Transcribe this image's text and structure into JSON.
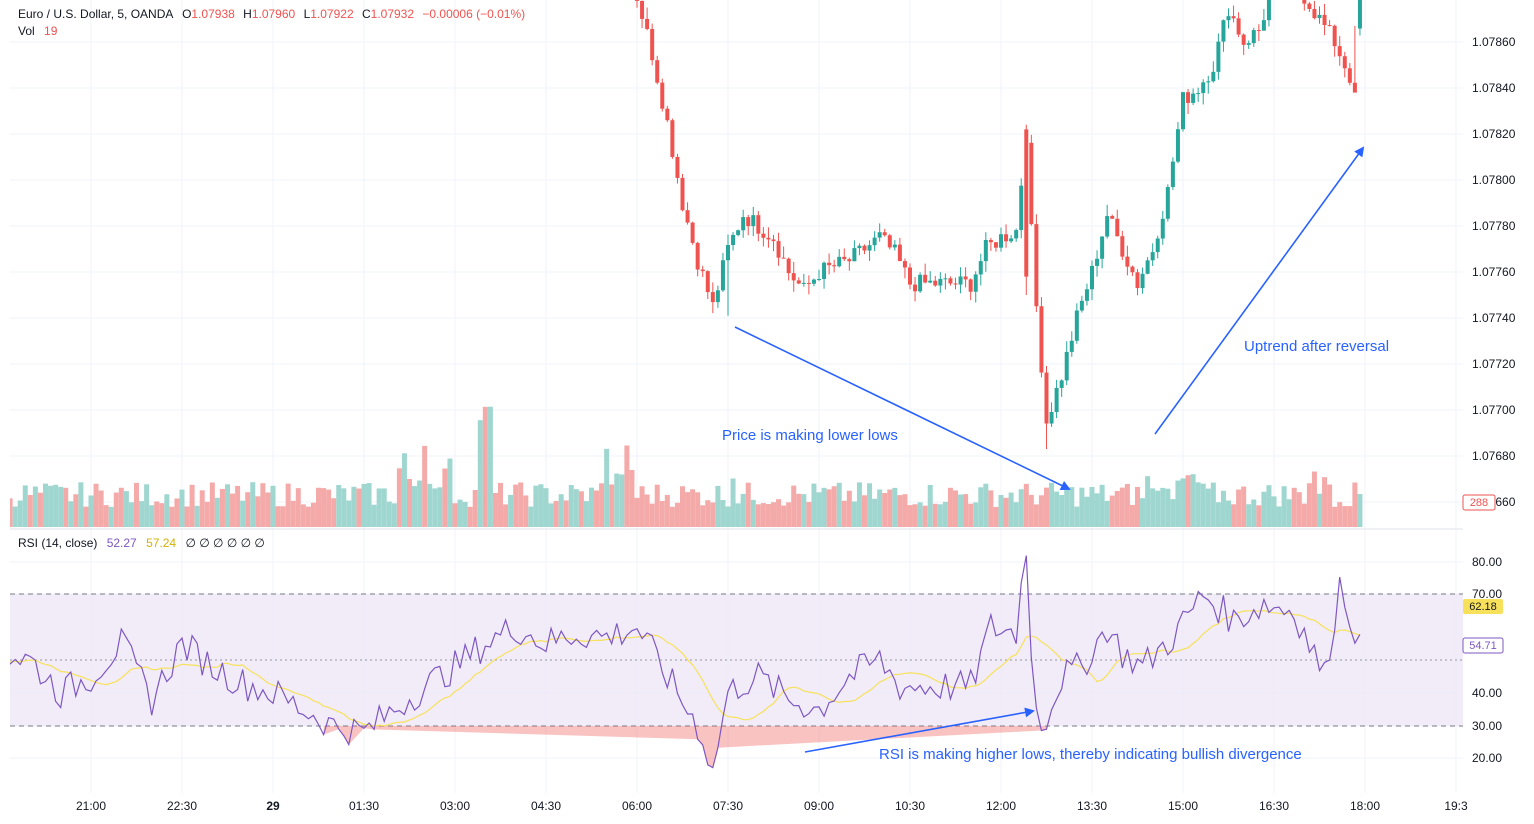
{
  "header": {
    "symbol": "Euro / U.S. Dollar, 5, OANDA",
    "open_label": "O",
    "open": "1.07938",
    "high_label": "H",
    "high": "1.07960",
    "low_label": "L",
    "low": "1.07922",
    "close_label": "C",
    "close": "1.07932",
    "change": "−0.00006 (−0.01%)",
    "vol_label": "Vol",
    "vol_value": "19"
  },
  "rsi_header": {
    "label": "RSI (14, close)",
    "rsi_value": "52.27",
    "ma_value": "57.24",
    "extras": "∅ ∅ ∅ ∅ ∅ ∅"
  },
  "colors": {
    "up": "#26a69a",
    "down": "#ef5350",
    "vol_up": "#9fd6cf",
    "vol_down": "#f3aaa8",
    "rsi": "#7e57c2",
    "rsi_ma": "#f7e15a",
    "band_fill": "#ede7f6",
    "annotation": "#2962ff",
    "grid": "#f0f3fa"
  },
  "annotations": {
    "lower_lows": "Price is making lower lows",
    "uptrend": "Uptrend after reversal",
    "divergence": "RSI is making higher lows, thereby indicating bullish divergence"
  },
  "chart_data": [
    {
      "type": "candlestick",
      "title": "Euro / U.S. Dollar, 5, OANDA",
      "y_ticks": [
        "1.07860",
        "1.07840",
        "1.07820",
        "1.07800",
        "1.07780",
        "1.07760",
        "1.07740",
        "1.07720",
        "1.07700",
        "1.07680",
        "1.07660"
      ],
      "ylim": [
        1.0766,
        1.0788
      ],
      "x_ticks": [
        "21:00",
        "22:30",
        "29",
        "01:30",
        "03:00",
        "04:30",
        "06:00",
        "07:30",
        "09:00",
        "10:30",
        "12:00",
        "13:30",
        "15:00",
        "16:30",
        "18:00",
        "19:3"
      ],
      "key_points": [
        {
          "time": "07:30",
          "low": 1.07741
        },
        {
          "time": "13:15",
          "low": 1.07683
        },
        {
          "time": "18:00",
          "close": 1.07838
        }
      ],
      "volume_last": "288",
      "grid": true
    },
    {
      "type": "line",
      "title": "RSI (14, close)",
      "y_ticks": [
        "80.00",
        "70.00",
        "40.00",
        "30.00",
        "20.00"
      ],
      "band": [
        30,
        70
      ],
      "midline": 50,
      "ylim": [
        15,
        90
      ],
      "series": [
        {
          "name": "RSI",
          "last": "54.71"
        },
        {
          "name": "RSI-based MA",
          "last": "62.18"
        }
      ],
      "lows": [
        {
          "time": "07:30",
          "value": 17
        },
        {
          "time": "13:30",
          "value": 30
        }
      ],
      "grid": true
    }
  ]
}
